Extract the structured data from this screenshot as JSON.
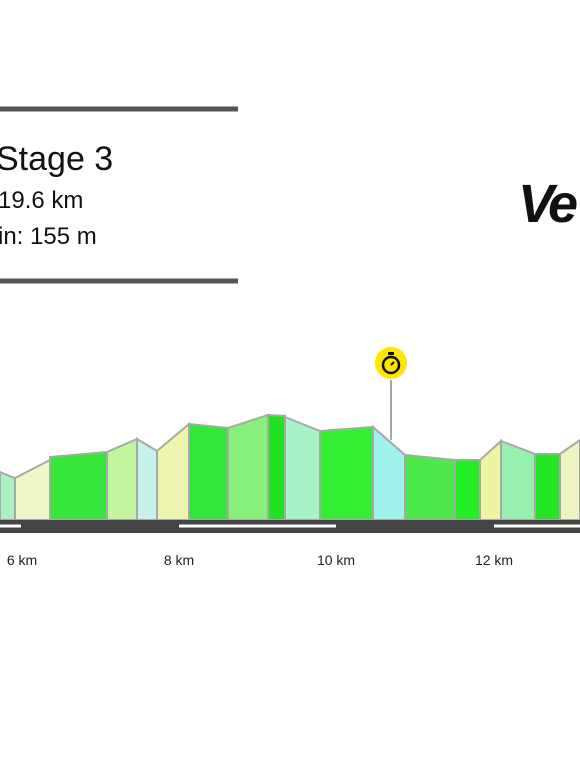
{
  "header": {
    "title": "Stage 3",
    "distance": "19.6 km",
    "elevation": "in: 155 m"
  },
  "logo": "Ve",
  "axis_labels": [
    "6 km",
    "8 km",
    "10 km",
    "12 km"
  ]
}
